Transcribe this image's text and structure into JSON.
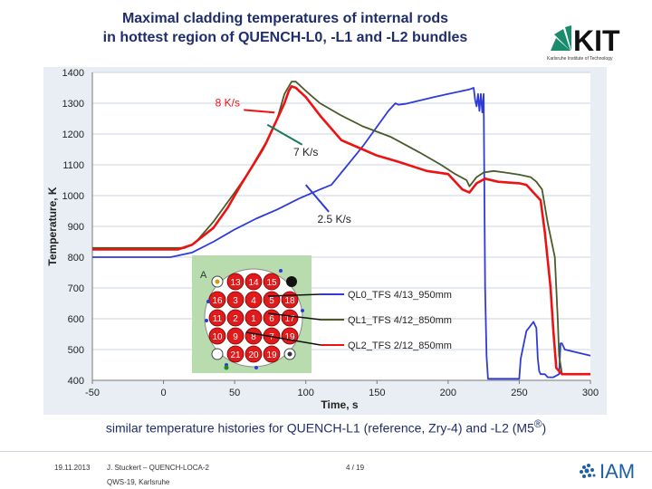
{
  "slide": {
    "title_line1": "Maximal cladding temperatures of internal rods",
    "title_line2": "in hottest region of QUENCH-L0, -L1 and -L2 bundles",
    "logo_text": "KIT",
    "logo_subtext": "Karlsruhe Institute of Technology",
    "caption_prefix": "similar temperature histories for QUENCH-L1 (reference, Zry-4) and -L2 (M5",
    "caption_sup": "®",
    "caption_suffix": ")",
    "footer_date": "19.11.2013",
    "footer_author": "J. Stuckert – QUENCH-LOCA-2",
    "footer_event": "QWS-19, Karlsruhe",
    "footer_page": "4 / 19",
    "iam_text": "IAM"
  },
  "colors": {
    "title": "#1f2d6b",
    "plot_bg": "#ffffff",
    "outer_bg": "#e9eef4",
    "grid": "#c8d4e0",
    "series_blue": "#2e3bd8",
    "series_olive": "#4a5a28",
    "series_red": "#ee1111",
    "kit_green": "#1a8c6e",
    "iam_blue": "#1f5fa8"
  },
  "chart_data": {
    "type": "line",
    "xlabel": "Time, s",
    "ylabel": "Temperature, K",
    "xlim": [
      -50,
      300
    ],
    "ylim": [
      400,
      1400
    ],
    "xticks": [
      "-50",
      "0",
      "50",
      "100",
      "150",
      "200",
      "250",
      "300"
    ],
    "yticks": [
      "400",
      "500",
      "600",
      "700",
      "800",
      "900",
      "1000",
      "1100",
      "1200",
      "1300",
      "1400"
    ],
    "grid": "horizontal",
    "series": [
      {
        "name": "QL0_TFS 4/13_950mm",
        "color": "#2e3bd8",
        "points": [
          [
            -50,
            800
          ],
          [
            5,
            800
          ],
          [
            20,
            815
          ],
          [
            35,
            850
          ],
          [
            50,
            890
          ],
          [
            65,
            925
          ],
          [
            80,
            955
          ],
          [
            95,
            990
          ],
          [
            110,
            1020
          ],
          [
            118,
            1035
          ],
          [
            140,
            1160
          ],
          [
            158,
            1275
          ],
          [
            163,
            1300
          ],
          [
            165,
            1295
          ],
          [
            170,
            1298
          ],
          [
            190,
            1320
          ],
          [
            200,
            1330
          ],
          [
            215,
            1345
          ],
          [
            218,
            1350
          ],
          [
            219,
            1310
          ],
          [
            220,
            1290
          ],
          [
            221,
            1330
          ],
          [
            222,
            1275
          ],
          [
            223,
            1330
          ],
          [
            224,
            1270
          ],
          [
            225,
            1330
          ],
          [
            226,
            700
          ],
          [
            227,
            480
          ],
          [
            228,
            405
          ],
          [
            232,
            405
          ],
          [
            250,
            405
          ],
          [
            251,
            470
          ],
          [
            255,
            560
          ],
          [
            260,
            590
          ],
          [
            262,
            570
          ],
          [
            263,
            470
          ],
          [
            264,
            430
          ],
          [
            265,
            420
          ],
          [
            268,
            420
          ],
          [
            270,
            410
          ],
          [
            274,
            410
          ],
          [
            278,
            420
          ],
          [
            279,
            520
          ],
          [
            280,
            520
          ],
          [
            282,
            500
          ],
          [
            300,
            480
          ]
        ]
      },
      {
        "name": "QL1_TFS 4/12_850mm",
        "color": "#4a5a28",
        "points": [
          [
            -50,
            830
          ],
          [
            15,
            830
          ],
          [
            22,
            845
          ],
          [
            35,
            915
          ],
          [
            50,
            1010
          ],
          [
            62,
            1090
          ],
          [
            70,
            1150
          ],
          [
            80,
            1250
          ],
          [
            85,
            1330
          ],
          [
            90,
            1370
          ],
          [
            93,
            1370
          ],
          [
            100,
            1340
          ],
          [
            110,
            1300
          ],
          [
            125,
            1260
          ],
          [
            140,
            1225
          ],
          [
            160,
            1190
          ],
          [
            180,
            1140
          ],
          [
            195,
            1100
          ],
          [
            205,
            1070
          ],
          [
            213,
            1050
          ],
          [
            215,
            1030
          ],
          [
            220,
            1060
          ],
          [
            225,
            1075
          ],
          [
            232,
            1080
          ],
          [
            240,
            1075
          ],
          [
            250,
            1068
          ],
          [
            258,
            1060
          ],
          [
            262,
            1045
          ],
          [
            266,
            1020
          ],
          [
            270,
            910
          ],
          [
            275,
            800
          ],
          [
            277,
            600
          ],
          [
            278,
            480
          ],
          [
            280,
            420
          ],
          [
            300,
            420
          ]
        ]
      },
      {
        "name": "QL2_TFS 2/12_850mm",
        "color": "#ee1111",
        "points": [
          [
            -50,
            825
          ],
          [
            10,
            825
          ],
          [
            20,
            840
          ],
          [
            35,
            895
          ],
          [
            45,
            960
          ],
          [
            55,
            1040
          ],
          [
            63,
            1100
          ],
          [
            72,
            1170
          ],
          [
            80,
            1250
          ],
          [
            85,
            1300
          ],
          [
            88,
            1340
          ],
          [
            90,
            1355
          ],
          [
            93,
            1350
          ],
          [
            100,
            1320
          ],
          [
            110,
            1260
          ],
          [
            125,
            1180
          ],
          [
            140,
            1150
          ],
          [
            150,
            1130
          ],
          [
            165,
            1110
          ],
          [
            185,
            1080
          ],
          [
            200,
            1070
          ],
          [
            210,
            1020
          ],
          [
            215,
            1010
          ],
          [
            220,
            1040
          ],
          [
            226,
            1055
          ],
          [
            235,
            1045
          ],
          [
            250,
            1040
          ],
          [
            255,
            1035
          ],
          [
            260,
            1010
          ],
          [
            265,
            985
          ],
          [
            268,
            880
          ],
          [
            272,
            700
          ],
          [
            274,
            560
          ],
          [
            276,
            440
          ],
          [
            280,
            420
          ],
          [
            300,
            420
          ]
        ]
      }
    ],
    "annotations": [
      {
        "text": "8 K/s",
        "x": 45,
        "y": 1290,
        "color": "#ee1111"
      },
      {
        "text": "7 K/s",
        "x": 100,
        "y": 1130,
        "color": "#222222"
      },
      {
        "text": "2.5 K/s",
        "x": 120,
        "y": 912,
        "color": "#222222"
      }
    ],
    "bundle_inset": {
      "label": "A",
      "rods": [
        {
          "label": "13",
          "status": "heated"
        },
        {
          "label": "14",
          "status": "heated"
        },
        {
          "label": "15",
          "status": "heated"
        },
        {
          "label": "16",
          "status": "heated"
        },
        {
          "label": "3",
          "status": "heated"
        },
        {
          "label": "4",
          "status": "heated"
        },
        {
          "label": "5",
          "status": "heated"
        },
        {
          "label": "18",
          "status": "heated"
        },
        {
          "label": "11",
          "status": "heated"
        },
        {
          "label": "2",
          "status": "heated"
        },
        {
          "label": "1",
          "status": "heated"
        },
        {
          "label": "6",
          "status": "heated"
        },
        {
          "label": "17",
          "status": "heated"
        },
        {
          "label": "10",
          "status": "heated"
        },
        {
          "label": "9",
          "status": "heated"
        },
        {
          "label": "8",
          "status": "heated"
        },
        {
          "label": "7",
          "status": "heated"
        },
        {
          "label": "19",
          "status": "heated"
        },
        {
          "label": "21",
          "status": "heated"
        },
        {
          "label": "20",
          "status": "heated"
        },
        {
          "label": "19",
          "status": "heated"
        }
      ]
    }
  }
}
